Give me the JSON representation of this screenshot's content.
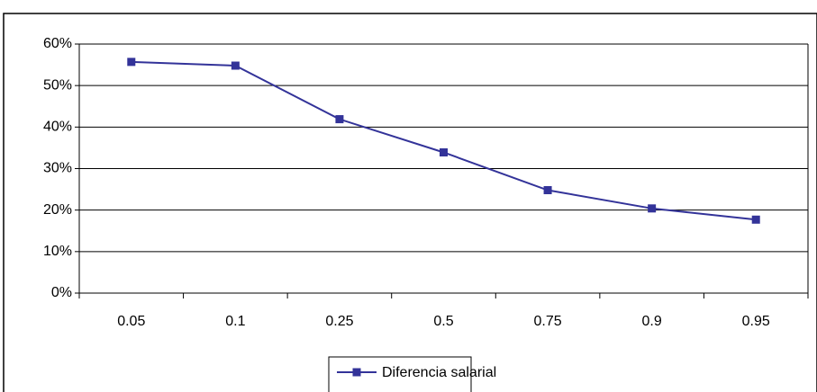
{
  "chart_data": {
    "type": "line",
    "categories": [
      "0.05",
      "0.1",
      "0.25",
      "0.5",
      "0.75",
      "0.9",
      "0.95"
    ],
    "series": [
      {
        "name": "Diferencia salarial",
        "color": "#333399",
        "values": [
          55.7,
          54.8,
          41.9,
          33.9,
          24.8,
          20.4,
          17.7
        ]
      }
    ],
    "ylim": [
      0,
      60
    ],
    "yticks": [
      {
        "value": 0,
        "label": "0%"
      },
      {
        "value": 10,
        "label": "10%"
      },
      {
        "value": 20,
        "label": "20%"
      },
      {
        "value": 30,
        "label": "30%"
      },
      {
        "value": 40,
        "label": "40%"
      },
      {
        "value": 50,
        "label": "50%"
      },
      {
        "value": 60,
        "label": "60%"
      }
    ],
    "grid": true,
    "legend": "bottom"
  }
}
